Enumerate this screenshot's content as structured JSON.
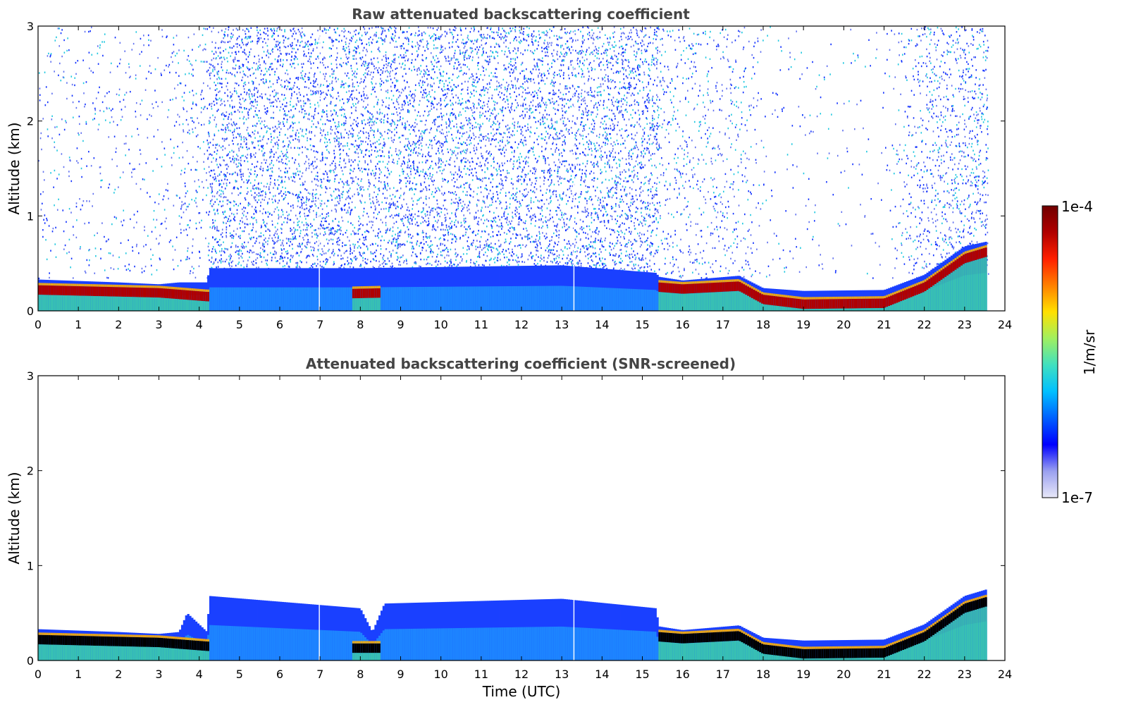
{
  "chart_data": [
    {
      "type": "heatmap",
      "title": "Raw attenuated backscattering coefficient",
      "xlabel": "",
      "ylabel": "Altitude (km)",
      "xlim": [
        0,
        24
      ],
      "ylim": [
        0,
        3
      ],
      "xticks": [
        "0",
        "1",
        "2",
        "3",
        "4",
        "5",
        "6",
        "7",
        "8",
        "9",
        "10",
        "11",
        "12",
        "13",
        "14",
        "15",
        "16",
        "17",
        "18",
        "19",
        "20",
        "21",
        "22",
        "23",
        "24"
      ],
      "yticks": [
        "0",
        "1",
        "2",
        "3"
      ],
      "data_end_time": 23.55,
      "gaps": [
        6.98,
        13.3
      ],
      "layer_top_km": [
        [
          0,
          0.33
        ],
        [
          2,
          0.3
        ],
        [
          3,
          0.28
        ],
        [
          3.5,
          0.3
        ],
        [
          4.2,
          0.3
        ],
        [
          4.25,
          0.45
        ],
        [
          8,
          0.45
        ],
        [
          13,
          0.48
        ],
        [
          15.35,
          0.4
        ],
        [
          15.4,
          0.36
        ],
        [
          16,
          0.32
        ],
        [
          17.4,
          0.37
        ],
        [
          18,
          0.24
        ],
        [
          19,
          0.21
        ],
        [
          21,
          0.22
        ],
        [
          22,
          0.38
        ],
        [
          23,
          0.68
        ],
        [
          23.55,
          0.73
        ]
      ],
      "strong_layer_km": [
        [
          0,
          0.22
        ],
        [
          2,
          0.2
        ],
        [
          3,
          0.19
        ],
        [
          4.2,
          0.15
        ],
        [
          15.4,
          0.25
        ],
        [
          16,
          0.23
        ],
        [
          17.4,
          0.26
        ],
        [
          18,
          0.12
        ],
        [
          19,
          0.07
        ],
        [
          21,
          0.08
        ],
        [
          22,
          0.25
        ],
        [
          23,
          0.55
        ],
        [
          23.55,
          0.62
        ]
      ],
      "noise_level": [
        [
          0,
          0.15
        ],
        [
          3.2,
          0.15
        ],
        [
          3.7,
          0.35
        ],
        [
          4.15,
          0.25
        ],
        [
          4.25,
          0.95
        ],
        [
          15.35,
          0.95
        ],
        [
          15.4,
          0.35
        ],
        [
          17.5,
          0.3
        ],
        [
          18,
          0.08
        ],
        [
          21,
          0.05
        ],
        [
          22,
          0.5
        ],
        [
          23.55,
          0.7
        ]
      ]
    },
    {
      "type": "heatmap",
      "title": "Attenuated backscattering coefficient (SNR-screened)",
      "xlabel": "Time (UTC)",
      "ylabel": "Altitude (km)",
      "xlim": [
        0,
        24
      ],
      "ylim": [
        0,
        3
      ],
      "xticks": [
        "0",
        "1",
        "2",
        "3",
        "4",
        "5",
        "6",
        "7",
        "8",
        "9",
        "10",
        "11",
        "12",
        "13",
        "14",
        "15",
        "16",
        "17",
        "18",
        "19",
        "20",
        "21",
        "22",
        "23",
        "24"
      ],
      "yticks": [
        "0",
        "1",
        "2",
        "3"
      ],
      "data_end_time": 23.55,
      "gaps": [
        6.98,
        13.3
      ],
      "layer_top_km": [
        [
          0,
          0.33
        ],
        [
          2,
          0.3
        ],
        [
          3,
          0.28
        ],
        [
          3.5,
          0.3
        ],
        [
          3.7,
          0.5
        ],
        [
          4.2,
          0.3
        ],
        [
          4.25,
          0.68
        ],
        [
          8,
          0.55
        ],
        [
          8.3,
          0.3
        ],
        [
          8.6,
          0.6
        ],
        [
          13,
          0.65
        ],
        [
          15.35,
          0.55
        ],
        [
          15.4,
          0.36
        ],
        [
          16,
          0.32
        ],
        [
          17.4,
          0.37
        ],
        [
          18,
          0.24
        ],
        [
          19,
          0.21
        ],
        [
          21,
          0.22
        ],
        [
          22,
          0.38
        ],
        [
          23,
          0.68
        ],
        [
          23.55,
          0.75
        ]
      ],
      "strong_layer_km": [
        [
          0,
          0.22
        ],
        [
          2,
          0.2
        ],
        [
          3,
          0.19
        ],
        [
          4.2,
          0.15
        ],
        [
          7.8,
          0.13
        ],
        [
          8.5,
          0.13
        ],
        [
          15.4,
          0.25
        ],
        [
          16,
          0.23
        ],
        [
          17.4,
          0.26
        ],
        [
          18,
          0.12
        ],
        [
          19,
          0.07
        ],
        [
          21,
          0.08
        ],
        [
          22,
          0.25
        ],
        [
          23,
          0.55
        ],
        [
          23.55,
          0.62
        ]
      ],
      "noise_level": []
    }
  ],
  "colorbar": {
    "label": "1/m/sr",
    "min_label": "1e-7",
    "max_label": "1e-4",
    "scale": "log",
    "colormap": "jet",
    "colors": [
      "#e8e8f8",
      "#9aa0f0",
      "#0000ff",
      "#0060ff",
      "#00c0ff",
      "#40e0c0",
      "#a0f060",
      "#ffe000",
      "#ff8000",
      "#ff2000",
      "#b00000",
      "#700000"
    ]
  }
}
